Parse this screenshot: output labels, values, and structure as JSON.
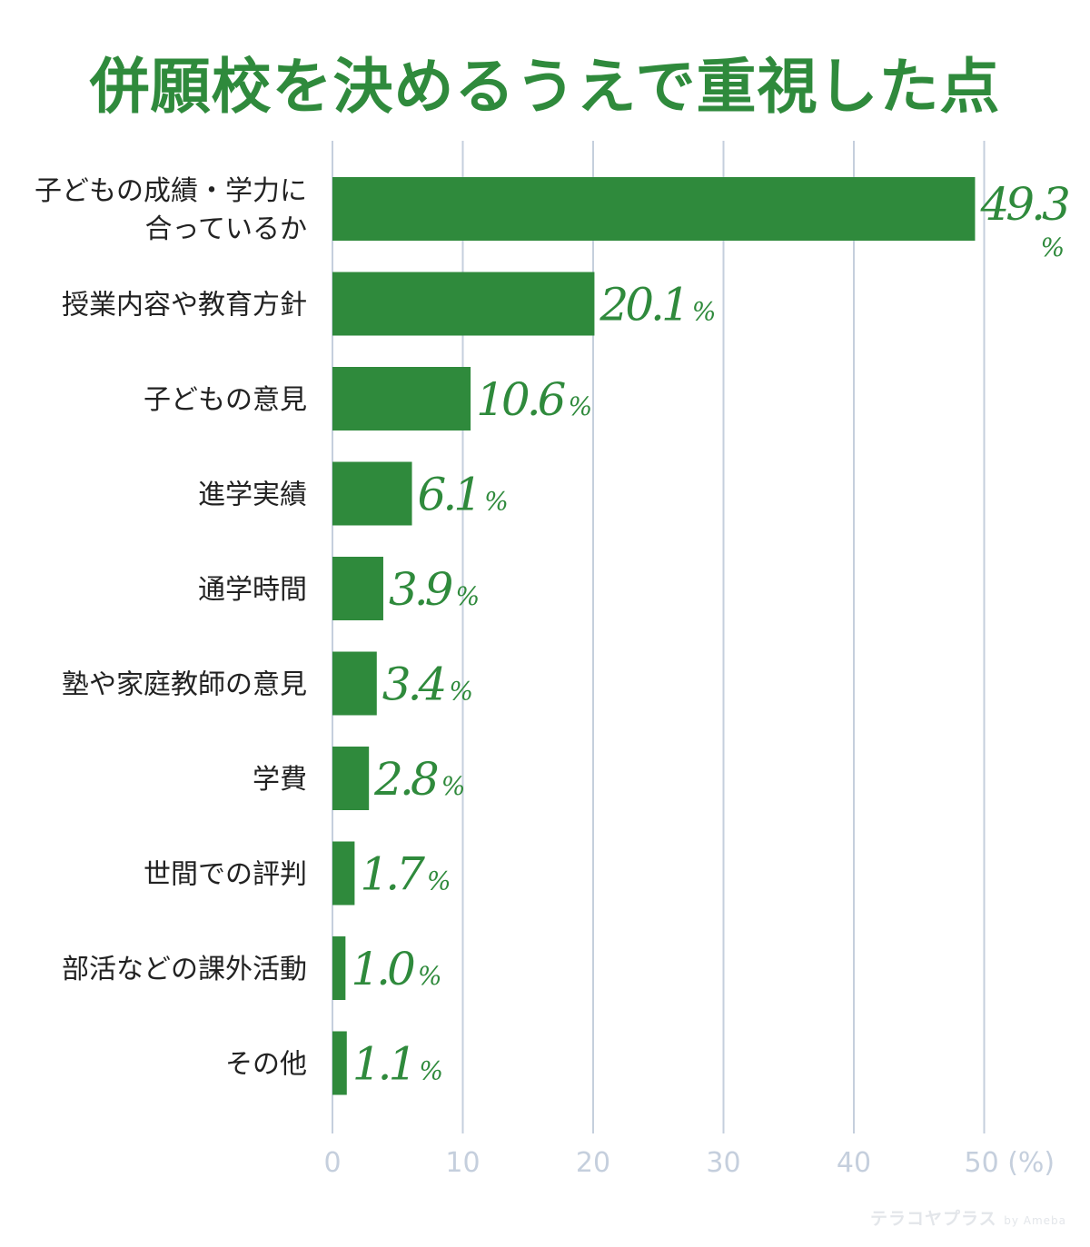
{
  "chart_data": {
    "type": "bar",
    "orientation": "horizontal",
    "title": "併願校を決めるうえで重視した点",
    "categories": [
      [
        "子どもの成績・学力に",
        "合っているか"
      ],
      [
        "授業内容や教育方針"
      ],
      [
        "子どもの意見"
      ],
      [
        "進学実績"
      ],
      [
        "通学時間"
      ],
      [
        "塾や家庭教師の意見"
      ],
      [
        "学費"
      ],
      [
        "世間での評判"
      ],
      [
        "部活などの課外活動"
      ],
      [
        "その他"
      ]
    ],
    "values": [
      49.3,
      20.1,
      10.6,
      6.1,
      3.9,
      3.4,
      2.8,
      1.7,
      1.0,
      1.1
    ],
    "value_labels": [
      "49.3",
      "20.1",
      "10.6",
      "6.1",
      "3.9",
      "3.4",
      "2.8",
      "1.7",
      "1.0",
      "1.1"
    ],
    "value_suffix": "%",
    "xlim": [
      0,
      50
    ],
    "xticks": [
      0,
      10,
      20,
      30,
      40,
      50
    ],
    "xtick_labels": [
      "0",
      "10",
      "20",
      "30",
      "40",
      "50 (%)"
    ],
    "grid": "vertical",
    "bar_color": "#2f8a3c",
    "grid_color": "#c5cfdd"
  },
  "watermark": {
    "text": "テラコヤプラス",
    "by": "by Ameba"
  }
}
